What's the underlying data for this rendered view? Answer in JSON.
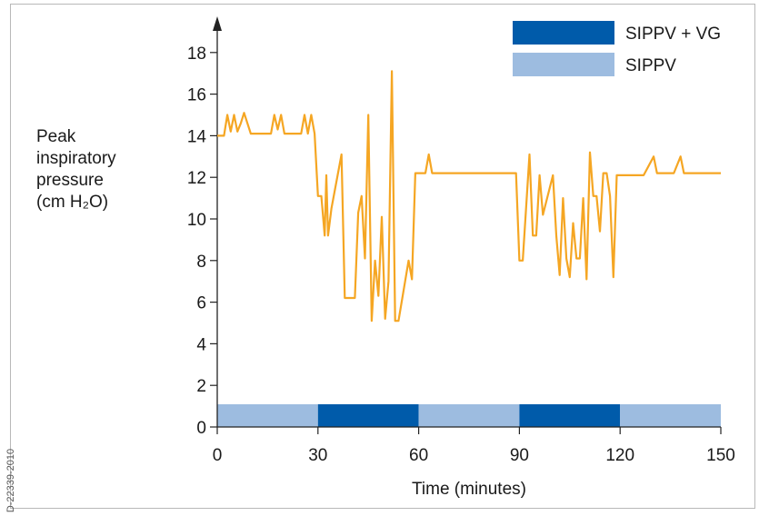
{
  "watermark": "D-22339-2010",
  "colors": {
    "line": "#F5A623",
    "sippv_vg": "#005BAA",
    "sippv": "#9DBCE0",
    "axis": "#222222"
  },
  "chart_data": {
    "type": "line",
    "xlabel": "Time (minutes)",
    "ylabel_lines": [
      "Peak",
      "inspiratory",
      "pressure",
      "(cm H₂O)"
    ],
    "xlim": [
      0,
      150
    ],
    "ylim": [
      0,
      19
    ],
    "xticks": [
      0,
      30,
      60,
      90,
      120,
      150
    ],
    "yticks": [
      0,
      2,
      4,
      6,
      8,
      10,
      12,
      14,
      16,
      18
    ],
    "grid": false,
    "legend_position": "top-right",
    "legend": [
      {
        "label": "SIPPV + VG",
        "color": "#005BAA"
      },
      {
        "label": "SIPPV",
        "color": "#9DBCE0"
      }
    ],
    "mode_bands": [
      {
        "mode": "SIPPV",
        "start": 0,
        "end": 30
      },
      {
        "mode": "SIPPV + VG",
        "start": 30,
        "end": 60
      },
      {
        "mode": "SIPPV",
        "start": 60,
        "end": 90
      },
      {
        "mode": "SIPPV + VG",
        "start": 90,
        "end": 120
      },
      {
        "mode": "SIPPV",
        "start": 120,
        "end": 150
      }
    ],
    "series": [
      {
        "color": "#F5A623",
        "x": [
          0,
          2,
          3,
          4,
          5,
          6,
          7,
          8,
          9,
          10,
          12,
          16,
          17,
          18,
          19,
          20,
          21,
          25,
          26,
          27,
          28,
          29,
          30,
          31,
          32,
          32.5,
          33,
          34,
          37,
          38,
          41,
          42,
          43,
          44,
          45,
          46,
          47,
          48,
          49,
          50,
          51,
          52,
          53,
          54,
          57,
          58,
          59,
          60,
          62,
          63,
          64,
          89,
          90,
          91,
          93,
          94,
          95,
          96,
          97,
          100,
          101,
          102,
          103,
          104,
          105,
          106,
          107,
          108,
          109,
          110,
          111,
          112,
          113,
          114,
          115,
          116,
          117,
          118,
          119,
          120,
          121,
          122,
          127,
          130,
          131,
          136,
          138,
          139,
          150
        ],
        "y": [
          14,
          14,
          15,
          14.2,
          15,
          14.2,
          14.6,
          15.1,
          14.6,
          14.1,
          14.1,
          14.1,
          15,
          14.3,
          15,
          14.1,
          14.1,
          14.1,
          15,
          14.1,
          15,
          14.1,
          11.1,
          11.1,
          9.2,
          12.1,
          9.2,
          10.5,
          13.1,
          6.2,
          6.2,
          10.3,
          11.1,
          8.1,
          15,
          5.1,
          8,
          6.3,
          10.1,
          5.2,
          7,
          17.1,
          5.1,
          5.1,
          8,
          7.1,
          12.2,
          12.2,
          12.2,
          13.1,
          12.2,
          12.2,
          8,
          8,
          13.1,
          9.2,
          9.2,
          12.1,
          10.2,
          12.1,
          9.2,
          7.3,
          11,
          8.1,
          7.2,
          9.8,
          8.1,
          8.1,
          11,
          7.1,
          13.2,
          11.1,
          11.1,
          9.4,
          12.2,
          12.2,
          11.1,
          7.2,
          12.1,
          12.1,
          12.1,
          12.1,
          12.1,
          13,
          12.2,
          12.2,
          13,
          12.2,
          12.2
        ]
      }
    ]
  }
}
